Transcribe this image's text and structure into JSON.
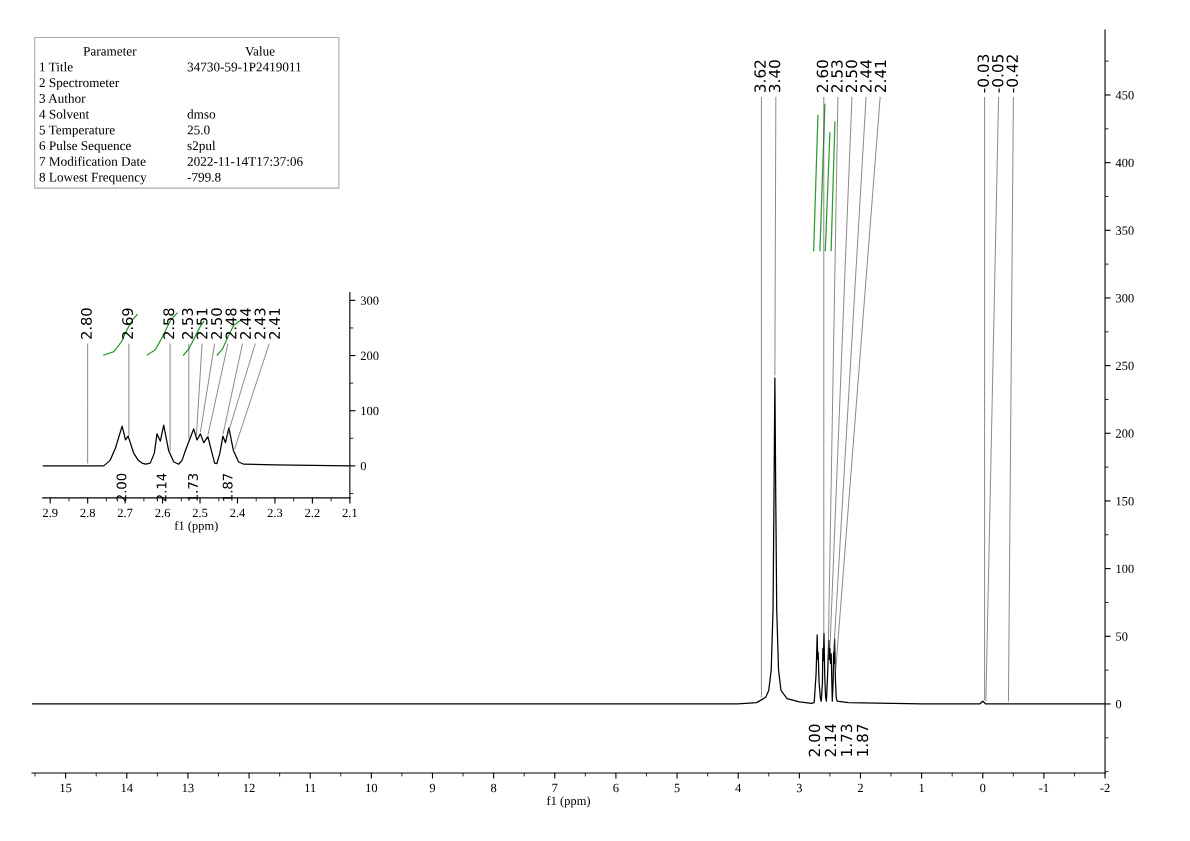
{
  "chart_data": [
    {
      "type": "line",
      "xlabel": "f1 (ppm)",
      "xlim": [
        15.55,
        -2
      ],
      "xticks": [
        15,
        14,
        13,
        12,
        11,
        10,
        9,
        8,
        7,
        6,
        5,
        4,
        3,
        2,
        1,
        0,
        -1,
        -2
      ],
      "ylim": [
        -51,
        498
      ],
      "yticks": [
        0,
        50,
        100,
        150,
        200,
        250,
        300,
        350,
        400,
        450
      ],
      "series": [
        {
          "color": "#000000",
          "x": [
            15.55,
            4.0,
            3.7,
            3.62,
            3.55,
            3.5,
            3.46,
            3.43,
            3.415,
            3.4,
            3.385,
            3.37,
            3.34,
            3.3,
            3.2,
            3.0,
            2.8,
            2.757,
            2.726,
            2.708,
            2.699,
            2.692,
            2.677,
            2.655,
            2.641,
            2.622,
            2.615,
            2.606,
            2.597,
            2.584,
            2.57,
            2.557,
            2.539,
            2.517,
            2.508,
            2.499,
            2.49,
            2.479,
            2.468,
            2.461,
            2.447,
            2.439,
            2.432,
            2.423,
            2.411,
            2.397,
            2.383,
            2.2,
            1.0,
            0.05,
            0.0,
            -0.05,
            -2
          ],
          "values": [
            0,
            0,
            1,
            3,
            5,
            10,
            25,
            70,
            150,
            241,
            150,
            70,
            25,
            10,
            4,
            1.5,
            0.5,
            1,
            22,
            51,
            33,
            38,
            16,
            4,
            2,
            16,
            41,
            32,
            52,
            20,
            5,
            2,
            20,
            47,
            33,
            41,
            30,
            37,
            16,
            2,
            16,
            38,
            30,
            48,
            20,
            5,
            2,
            1,
            0,
            0,
            2,
            0,
            0
          ]
        },
        {
          "color": "#2e9b2e",
          "x": [
            2.765,
            2.696
          ],
          "values": [
            335,
            435
          ]
        },
        {
          "color": "#2e9b2e",
          "x": [
            2.663,
            2.582
          ],
          "values": [
            335,
            443
          ]
        },
        {
          "color": "#2e9b2e",
          "x": [
            2.575,
            2.5
          ],
          "values": [
            335,
            422
          ]
        },
        {
          "color": "#2e9b2e",
          "x": [
            2.48,
            2.418
          ],
          "values": [
            335,
            430
          ]
        }
      ],
      "annotations": [
        "Parameter\tValue",
        "1 Title\t34730-59-1P2419011",
        "2 Spectrometer",
        "3 Author",
        "4 Solvent\tdmso",
        "5 Temperature\t25.0",
        "6 Pulse Sequence\ts2pul",
        "7 Modification Date\t2022-11-14T17:37:06",
        "8 Lowest Frequency\t-799.8",
        "2.00",
        "2.14",
        "1.73",
        "1.87",
        {
          "text": "3.62",
          "x": 3.62,
          "y": 3
        },
        {
          "text": "3.40",
          "x": 3.4,
          "y": 241
        },
        {
          "text": "2.60",
          "x": 2.6,
          "y": 48
        },
        {
          "text": "2.53",
          "x": 2.53,
          "y": 30
        },
        {
          "text": "2.50",
          "x": 2.5,
          "y": 40
        },
        {
          "text": "2.44",
          "x": 2.44,
          "y": 36
        },
        {
          "text": "2.41",
          "x": 2.41,
          "y": 22
        },
        {
          "text": "-0.03",
          "x": -0.03,
          "y": 1
        },
        {
          "text": "-0.05",
          "x": -0.05,
          "y": 0
        },
        {
          "text": "-0.42",
          "x": -0.42,
          "y": 0
        }
      ]
    },
    {
      "type": "line",
      "xlabel": "f1 (ppm)",
      "xlim": [
        2.92,
        2.1
      ],
      "xticks": [
        2.9,
        2.8,
        2.7,
        2.6,
        2.5,
        2.4,
        2.3,
        2.2,
        2.1
      ],
      "ylim": [
        -58,
        314
      ],
      "yticks": [
        0,
        100,
        200,
        300
      ],
      "series": [
        {
          "color": "#000000",
          "x": [
            2.92,
            2.8,
            2.757,
            2.74,
            2.726,
            2.708,
            2.699,
            2.692,
            2.677,
            2.665,
            2.655,
            2.645,
            2.633,
            2.622,
            2.615,
            2.606,
            2.597,
            2.584,
            2.57,
            2.557,
            2.548,
            2.539,
            2.517,
            2.508,
            2.499,
            2.49,
            2.479,
            2.468,
            2.461,
            2.455,
            2.447,
            2.439,
            2.432,
            2.423,
            2.411,
            2.397,
            2.383,
            2.3,
            2.1
          ],
          "values": [
            0,
            0,
            0,
            10,
            32,
            72,
            47,
            54,
            23,
            10,
            5,
            3,
            5,
            23,
            58,
            45,
            74,
            28,
            7,
            3,
            10,
            28,
            67,
            47,
            58,
            42,
            53,
            23,
            5,
            4,
            23,
            54,
            42,
            69,
            28,
            7,
            3,
            2,
            0
          ]
        },
        {
          "color": "#2e9b2e",
          "x": [
            2.757,
            2.73,
            2.71,
            2.695,
            2.68,
            2.668
          ],
          "values": [
            201,
            207,
            225,
            247,
            265,
            274
          ]
        },
        {
          "color": "#2e9b2e",
          "x": [
            2.641,
            2.62,
            2.605,
            2.593,
            2.578,
            2.561
          ],
          "values": [
            201,
            210,
            228,
            244,
            265,
            277
          ]
        },
        {
          "color": "#2e9b2e",
          "x": [
            2.544,
            2.53,
            2.515,
            2.5,
            2.49
          ],
          "values": [
            201,
            212,
            232,
            252,
            262
          ]
        },
        {
          "color": "#2e9b2e",
          "x": [
            2.454,
            2.44,
            2.425,
            2.41,
            2.387
          ],
          "values": [
            201,
            212,
            235,
            255,
            266
          ]
        }
      ],
      "annotations": [
        "2.00",
        "2.14",
        "1.73",
        "1.87",
        {
          "text": "2.80",
          "x": 2.8,
          "y": 0
        },
        {
          "text": "2.69",
          "x": 2.69,
          "y": 50
        },
        {
          "text": "2.58",
          "x": 2.58,
          "y": 22
        },
        {
          "text": "2.53",
          "x": 2.53,
          "y": 45
        },
        {
          "text": "2.51",
          "x": 2.51,
          "y": 51
        },
        {
          "text": "2.50",
          "x": 2.5,
          "y": 57
        },
        {
          "text": "2.48",
          "x": 2.48,
          "y": 52
        },
        {
          "text": "2.44",
          "x": 2.44,
          "y": 53
        },
        {
          "text": "2.43",
          "x": 2.43,
          "y": 48
        },
        {
          "text": "2.41",
          "x": 2.41,
          "y": 26
        }
      ]
    }
  ]
}
